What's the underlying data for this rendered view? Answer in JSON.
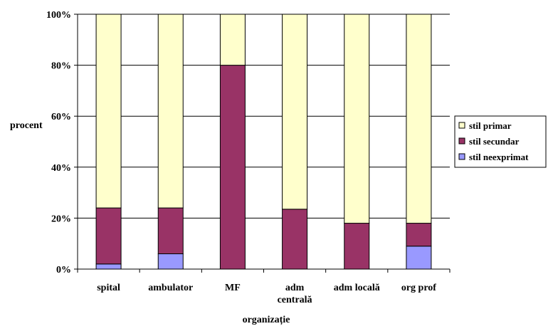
{
  "chart_data": {
    "type": "bar",
    "stacked": true,
    "percent": true,
    "categories": [
      [
        "spital"
      ],
      [
        "ambulator"
      ],
      [
        "MF"
      ],
      [
        "adm",
        "centrală"
      ],
      [
        "adm locală"
      ],
      [
        "org prof"
      ]
    ],
    "series": [
      {
        "name": "stil neexprimat",
        "color": "#9999ff",
        "values": [
          2,
          6,
          0,
          0,
          0,
          9
        ]
      },
      {
        "name": "stil secundar",
        "color": "#993366",
        "values": [
          22,
          18,
          80,
          23.5,
          18,
          9
        ]
      },
      {
        "name": "stil primar",
        "color": "#ffffcc",
        "values": [
          76,
          76,
          20,
          76.5,
          82,
          82
        ]
      }
    ],
    "yticks": [
      "0%",
      "20%",
      "40%",
      "60%",
      "80%",
      "100%"
    ],
    "ylim": [
      0,
      100
    ],
    "xlabel": "organizație",
    "ylabel": "procent",
    "legend": [
      "stil primar",
      "stil secundar",
      "stil neexprimat"
    ],
    "legend_position": "right",
    "grid": true
  }
}
